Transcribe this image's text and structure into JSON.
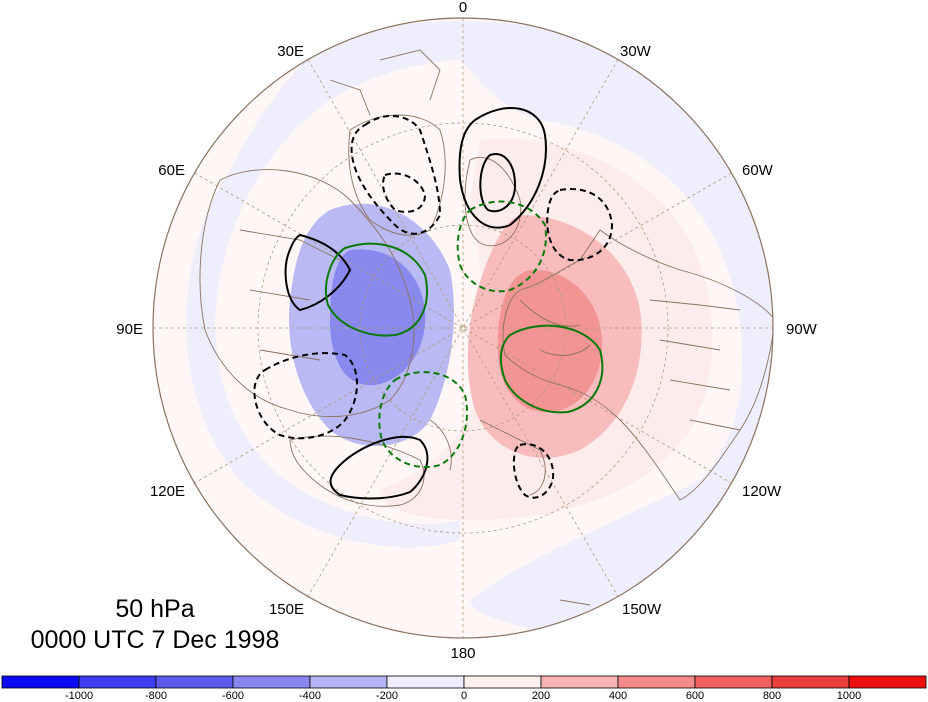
{
  "title": {
    "level": "50 hPa",
    "time": "0000 UTC 7 Dec 1998"
  },
  "longitude_labels": {
    "lon_0": "0",
    "lon_30w": "30W",
    "lon_60w": "60W",
    "lon_90w": "90W",
    "lon_120w": "120W",
    "lon_150w": "150W",
    "lon_180": "180",
    "lon_150e": "150E",
    "lon_120e": "120E",
    "lon_90e": "90E",
    "lon_60e": "60E",
    "lon_30e": "30E"
  },
  "colorbar": {
    "colors": [
      "#0b0bf5",
      "#3c3cf0",
      "#5c5ceb",
      "#8787ee",
      "#b4b4f4",
      "#eeeeff",
      "#fff0f0",
      "#f8b4b4",
      "#f48a8a",
      "#f06060",
      "#ea3e3e",
      "#ee1010"
    ],
    "tick_labels": [
      "-1000",
      "-800",
      "-600",
      "-400",
      "-200",
      "0",
      "200",
      "400",
      "600",
      "800",
      "1000"
    ]
  },
  "map_colors": {
    "positive_weak": "#fdeeee",
    "positive_mid": "#f8c6c6",
    "positive_strong": "#f29292",
    "negative_weak": "#ececfb",
    "negative_mid": "#b8b8f2",
    "negative_strong": "#8383ec",
    "coastline": "#8b7360",
    "graticule": "#b39a7a",
    "contour_black": "#000000",
    "contour_green": "#0a7a0a"
  }
}
